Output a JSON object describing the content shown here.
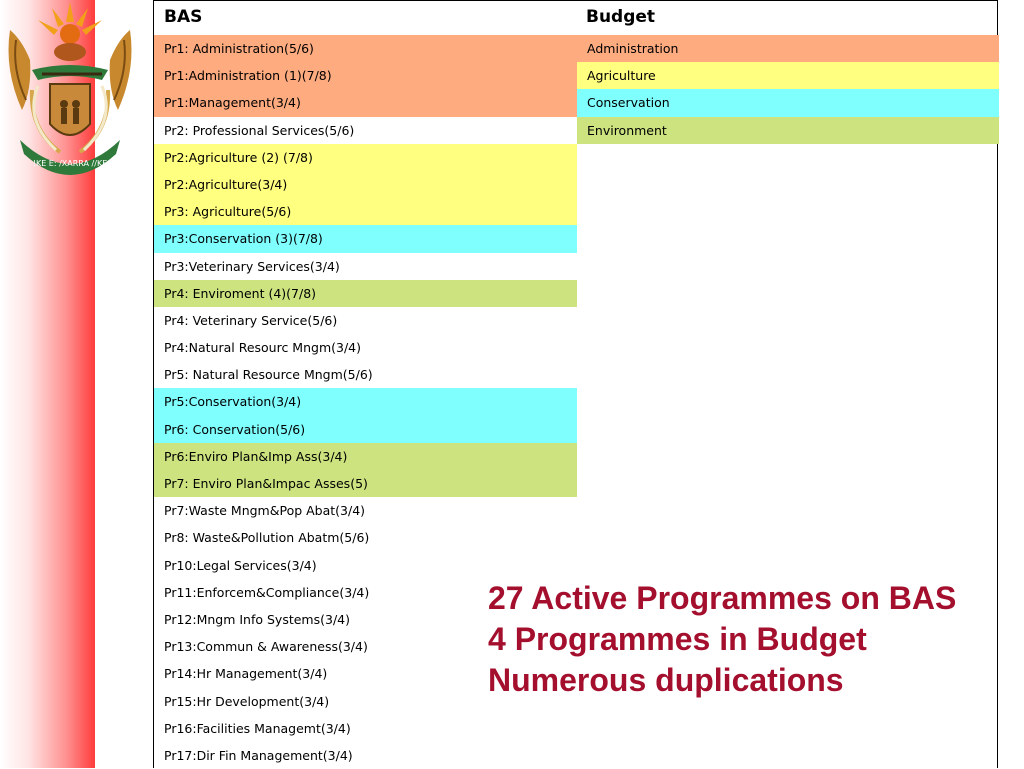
{
  "table": {
    "header_bas": "BAS",
    "header_budget": "Budget",
    "bas_rows": [
      {
        "label": "Pr1: Administration(5/6)",
        "color": "orange"
      },
      {
        "label": "Pr1:Administration (1)(7/8)",
        "color": "orange"
      },
      {
        "label": "Pr1:Management(3/4)",
        "color": "orange"
      },
      {
        "label": "Pr2: Professional Services(5/6)",
        "color": "white"
      },
      {
        "label": "Pr2:Agriculture (2) (7/8)",
        "color": "yellow"
      },
      {
        "label": "Pr2:Agriculture(3/4)",
        "color": "yellow"
      },
      {
        "label": "Pr3: Agriculture(5/6)",
        "color": "yellow"
      },
      {
        "label": "Pr3:Conservation (3)(7/8)",
        "color": "cyan"
      },
      {
        "label": "Pr3:Veterinary Services(3/4)",
        "color": "white"
      },
      {
        "label": "Pr4: Enviroment (4)(7/8)",
        "color": "green"
      },
      {
        "label": "Pr4: Veterinary Service(5/6)",
        "color": "white"
      },
      {
        "label": "Pr4:Natural Resourc Mngm(3/4)",
        "color": "white"
      },
      {
        "label": "Pr5: Natural Resource Mngm(5/6)",
        "color": "white"
      },
      {
        "label": "Pr5:Conservation(3/4)",
        "color": "cyan"
      },
      {
        "label": "Pr6: Conservation(5/6)",
        "color": "cyan"
      },
      {
        "label": "Pr6:Enviro Plan&Imp Ass(3/4)",
        "color": "green"
      },
      {
        "label": "Pr7: Enviro Plan&Impac Asses(5)",
        "color": "green"
      },
      {
        "label": "Pr7:Waste Mngm&Pop Abat(3/4)",
        "color": "white"
      },
      {
        "label": "Pr8: Waste&Pollution Abatm(5/6)",
        "color": "white"
      },
      {
        "label": "Pr10:Legal Services(3/4)",
        "color": "white"
      },
      {
        "label": "Pr11:Enforcem&Compliance(3/4)",
        "color": "white"
      },
      {
        "label": "Pr12:Mngm Info Systems(3/4)",
        "color": "white"
      },
      {
        "label": "Pr13:Commun & Awareness(3/4)",
        "color": "white"
      },
      {
        "label": "Pr14:Hr Management(3/4)",
        "color": "white"
      },
      {
        "label": "Pr15:Hr Development(3/4)",
        "color": "white"
      },
      {
        "label": "Pr16:Facilities Managemt(3/4)",
        "color": "white"
      },
      {
        "label": "Pr17:Dir Fin Management(3/4)",
        "color": "white"
      }
    ],
    "budget_rows": [
      {
        "label": "Administration",
        "color": "orange"
      },
      {
        "label": "Agriculture",
        "color": "yellow"
      },
      {
        "label": "Conservation",
        "color": "cyan"
      },
      {
        "label": "Environment",
        "color": "green"
      }
    ]
  },
  "summary": {
    "line1": "27 Active Programmes on BAS",
    "line2": "4 Programmes in Budget",
    "line3": "Numerous duplications"
  },
  "colors": {
    "orange": "#ffab80",
    "yellow": "#ffff80",
    "cyan": "#80ffff",
    "green": "#cce37f",
    "summary_text": "#a50f2e"
  },
  "crest": {
    "motto": "!KE E: /XARRA //KE"
  }
}
